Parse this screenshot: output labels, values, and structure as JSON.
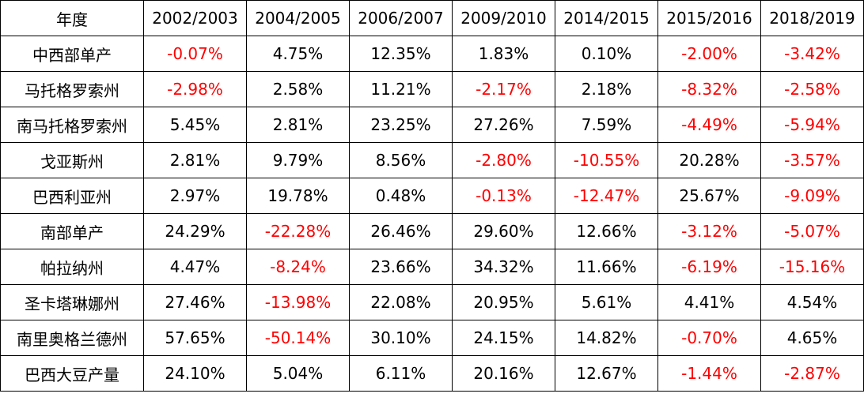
{
  "table": {
    "header_label": "年度",
    "columns": [
      "2002/2003",
      "2004/2005",
      "2006/2007",
      "2009/2010",
      "2014/2015",
      "2015/2016",
      "2018/2019"
    ],
    "rows": [
      {
        "label": "中西部单产",
        "values": [
          "-0.07%",
          "4.75%",
          "12.35%",
          "1.83%",
          "0.10%",
          "-2.00%",
          "-3.42%"
        ]
      },
      {
        "label": "马托格罗索州",
        "values": [
          "-2.98%",
          "2.58%",
          "11.21%",
          "-2.17%",
          "2.18%",
          "-8.32%",
          "-2.58%"
        ]
      },
      {
        "label": "南马托格罗索州",
        "values": [
          "5.45%",
          "2.81%",
          "23.25%",
          "27.26%",
          "7.59%",
          "-4.49%",
          "-5.94%"
        ]
      },
      {
        "label": "戈亚斯州",
        "values": [
          "2.81%",
          "9.79%",
          "8.56%",
          "-2.80%",
          "-10.55%",
          "20.28%",
          "-3.57%"
        ]
      },
      {
        "label": "巴西利亚州",
        "values": [
          "2.97%",
          "19.78%",
          "0.48%",
          "-0.13%",
          "-12.47%",
          "25.67%",
          "-9.09%"
        ]
      },
      {
        "label": "南部单产",
        "values": [
          "24.29%",
          "-22.28%",
          "26.46%",
          "29.60%",
          "12.66%",
          "-3.12%",
          "-5.07%"
        ]
      },
      {
        "label": "帕拉纳州",
        "values": [
          "4.47%",
          "-8.24%",
          "23.66%",
          "34.32%",
          "11.66%",
          "-6.19%",
          "-15.16%"
        ]
      },
      {
        "label": "圣卡塔琳娜州",
        "values": [
          "27.46%",
          "-13.98%",
          "22.08%",
          "20.95%",
          "5.61%",
          "4.41%",
          "4.54%"
        ]
      },
      {
        "label": "南里奥格兰德州",
        "values": [
          "57.65%",
          "-50.14%",
          "30.10%",
          "24.15%",
          "14.82%",
          "-0.70%",
          "4.65%"
        ]
      },
      {
        "label": "巴西大豆产量",
        "values": [
          "24.10%",
          "5.04%",
          "6.11%",
          "20.16%",
          "12.67%",
          "-1.44%",
          "-2.87%"
        ]
      }
    ]
  },
  "colors": {
    "negative_value": "#ff0000",
    "positive_value": "#000000",
    "border": "#000000",
    "background": "#ffffff"
  }
}
